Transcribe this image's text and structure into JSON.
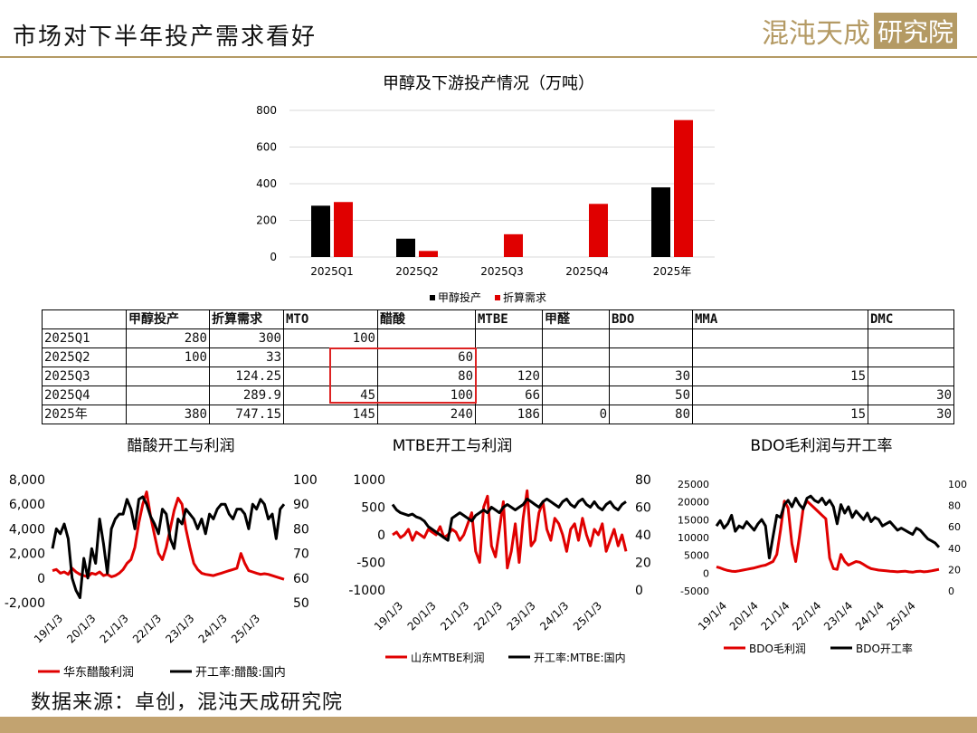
{
  "header": {
    "title": "市场对下半年投产需求看好",
    "brand_main": "混沌天成",
    "brand_box": "研究院"
  },
  "source": "数据来源：卓创，混沌天成研究院",
  "colors": {
    "black": "#000000",
    "red": "#e00000",
    "gold": "#b49a64"
  },
  "chart_data": [
    {
      "type": "bar",
      "title": "甲醇及下游投产情况（万吨）",
      "categories": [
        "2025Q1",
        "2025Q2",
        "2025Q3",
        "2025Q4",
        "2025年"
      ],
      "series": [
        {
          "name": "甲醇投产",
          "values": [
            280,
            100,
            null,
            null,
            380
          ]
        },
        {
          "name": "折算需求",
          "values": [
            300,
            33,
            124.25,
            289.9,
            747.15
          ]
        }
      ],
      "ylim": [
        0,
        800
      ],
      "yticks": [
        0,
        200,
        400,
        600,
        800
      ],
      "legend_position": "bottom"
    },
    {
      "type": "table",
      "columns": [
        "",
        "甲醇投产",
        "折算需求",
        "MTO",
        "醋酸",
        "MTBE",
        "甲醛",
        "BDO",
        "MMA",
        "DMC"
      ],
      "rows": [
        [
          "2025Q1",
          "280",
          "300",
          "100",
          "",
          "",
          "",
          "",
          "",
          ""
        ],
        [
          "2025Q2",
          "100",
          "33",
          "",
          "60",
          "",
          "",
          "",
          "",
          ""
        ],
        [
          "2025Q3",
          "",
          "124.25",
          "",
          "80",
          "120",
          "",
          "30",
          "15",
          ""
        ],
        [
          "2025Q4",
          "",
          "289.9",
          "45",
          "100",
          "66",
          "",
          "50",
          "",
          "30"
        ],
        [
          "2025年",
          "380",
          "747.15",
          "145",
          "240",
          "186",
          "0",
          "80",
          "15",
          "30"
        ]
      ]
    },
    {
      "type": "line",
      "title": "醋酸开工与利润",
      "x_range": [
        "2019-01-03",
        "2025-12-31"
      ],
      "xticks": [
        "19/1/3",
        "20/1/3",
        "21/1/3",
        "22/1/3",
        "23/1/3",
        "24/1/3",
        "25/1/3"
      ],
      "left_ylim": [
        -2000,
        8000
      ],
      "left_yticks": [
        "-2,000",
        "0",
        "2,000",
        "4,000",
        "6,000",
        "8,000"
      ],
      "right_ylim": [
        50,
        100
      ],
      "right_yticks": [
        "50",
        "60",
        "70",
        "80",
        "90",
        "100"
      ],
      "series": [
        {
          "name": "华东醋酸利润",
          "axis": "left",
          "color": "#e00000",
          "values": [
            600,
            700,
            400,
            500,
            300,
            800,
            500,
            300,
            200,
            100,
            400,
            300,
            500,
            200,
            300,
            100,
            200,
            400,
            700,
            1200,
            1500,
            2500,
            4500,
            6000,
            7000,
            5000,
            3500,
            2000,
            1500,
            2500,
            4000,
            5500,
            6500,
            6000,
            4000,
            2500,
            1200,
            700,
            400,
            300,
            250,
            200,
            300,
            400,
            500,
            600,
            700,
            800,
            2000,
            1200,
            600,
            500,
            400,
            300,
            350,
            300,
            200,
            100,
            0,
            -100
          ]
        },
        {
          "name": "开工率:醋酸:国内",
          "axis": "right",
          "color": "#000000",
          "values": [
            72,
            80,
            78,
            82,
            76,
            60,
            55,
            52,
            68,
            60,
            72,
            66,
            84,
            74,
            62,
            80,
            84,
            86,
            86,
            92,
            88,
            80,
            92,
            93,
            90,
            85,
            82,
            78,
            88,
            86,
            76,
            72,
            84,
            82,
            88,
            86,
            84,
            80,
            84,
            78,
            86,
            84,
            88,
            90,
            90,
            86,
            84,
            88,
            88,
            86,
            80,
            90,
            88,
            92,
            90,
            84,
            86,
            76,
            88,
            90
          ]
        }
      ]
    },
    {
      "type": "line",
      "title": "MTBE开工与利润",
      "x_range": [
        "2019-01-03",
        "2025-12-31"
      ],
      "xticks": [
        "19/1/3",
        "20/1/3",
        "21/1/3",
        "22/1/3",
        "23/1/3",
        "24/1/3",
        "25/1/3"
      ],
      "left_ylim": [
        -1000,
        1000
      ],
      "left_yticks": [
        "-1000",
        "-500",
        "0",
        "500",
        "1000"
      ],
      "right_ylim": [
        0,
        80
      ],
      "right_yticks": [
        "0",
        "20",
        "40",
        "60",
        "80"
      ],
      "series": [
        {
          "name": "山东MTBE利润",
          "axis": "left",
          "color": "#e00000",
          "values": [
            0,
            50,
            -50,
            0,
            100,
            -100,
            50,
            0,
            -50,
            100,
            50,
            0,
            150,
            -50,
            0,
            100,
            50,
            -100,
            0,
            200,
            400,
            -300,
            -500,
            500,
            700,
            -200,
            -400,
            100,
            600,
            -600,
            -300,
            200,
            -500,
            300,
            800,
            -200,
            -100,
            400,
            600,
            100,
            -100,
            300,
            200,
            0,
            -300,
            100,
            200,
            -100,
            300,
            0,
            -200,
            100,
            0,
            200,
            -300,
            -100,
            100,
            -200,
            0,
            -300
          ]
        },
        {
          "name": "开工率:MTBE:国内",
          "axis": "right",
          "color": "#000000",
          "values": [
            62,
            58,
            56,
            55,
            54,
            55,
            53,
            52,
            50,
            46,
            44,
            42,
            40,
            38,
            36,
            52,
            54,
            56,
            54,
            52,
            50,
            54,
            56,
            58,
            56,
            60,
            58,
            56,
            60,
            62,
            60,
            58,
            60,
            62,
            66,
            64,
            62,
            60,
            64,
            66,
            64,
            62,
            60,
            64,
            66,
            62,
            60,
            64,
            66,
            62,
            60,
            64,
            60,
            58,
            62,
            64,
            60,
            58,
            62,
            64
          ]
        }
      ]
    },
    {
      "type": "line",
      "title": "BDO毛利润与开工率",
      "x_range": [
        "2019-01-04",
        "2025-12-31"
      ],
      "xticks": [
        "19/1/4",
        "20/1/4",
        "21/1/4",
        "22/1/4",
        "23/1/4",
        "24/1/4",
        "25/1/4"
      ],
      "left_ylim": [
        -5000,
        25000
      ],
      "left_yticks": [
        "-5000",
        "0",
        "5000",
        "10000",
        "15000",
        "20000",
        "25000"
      ],
      "right_ylim": [
        0,
        100
      ],
      "right_yticks": [
        "0",
        "20",
        "40",
        "60",
        "80",
        "100"
      ],
      "series": [
        {
          "name": "BDO毛利润",
          "axis": "left",
          "color": "#e00000",
          "values": [
            1500,
            1200,
            800,
            500,
            300,
            200,
            400,
            600,
            800,
            1000,
            1200,
            1500,
            1800,
            2000,
            2500,
            3000,
            5000,
            12000,
            20000,
            18000,
            8000,
            3000,
            10000,
            18000,
            20000,
            19000,
            18000,
            17000,
            16000,
            15000,
            4000,
            1000,
            800,
            5000,
            3000,
            2000,
            2500,
            3000,
            2800,
            2200,
            1500,
            1000,
            800,
            600,
            500,
            400,
            300,
            200,
            100,
            200,
            300,
            100,
            0,
            200,
            300,
            100,
            200,
            400,
            600,
            800
          ]
        },
        {
          "name": "BDO开工率",
          "axis": "right",
          "color": "#000000",
          "values": [
            60,
            65,
            58,
            62,
            70,
            55,
            60,
            58,
            64,
            60,
            56,
            62,
            66,
            60,
            30,
            50,
            70,
            68,
            80,
            84,
            78,
            86,
            80,
            76,
            86,
            88,
            84,
            82,
            86,
            80,
            84,
            78,
            62,
            80,
            72,
            78,
            68,
            74,
            70,
            66,
            72,
            64,
            68,
            66,
            60,
            62,
            64,
            60,
            56,
            58,
            56,
            54,
            52,
            58,
            56,
            52,
            48,
            46,
            44,
            40
          ]
        }
      ]
    }
  ]
}
